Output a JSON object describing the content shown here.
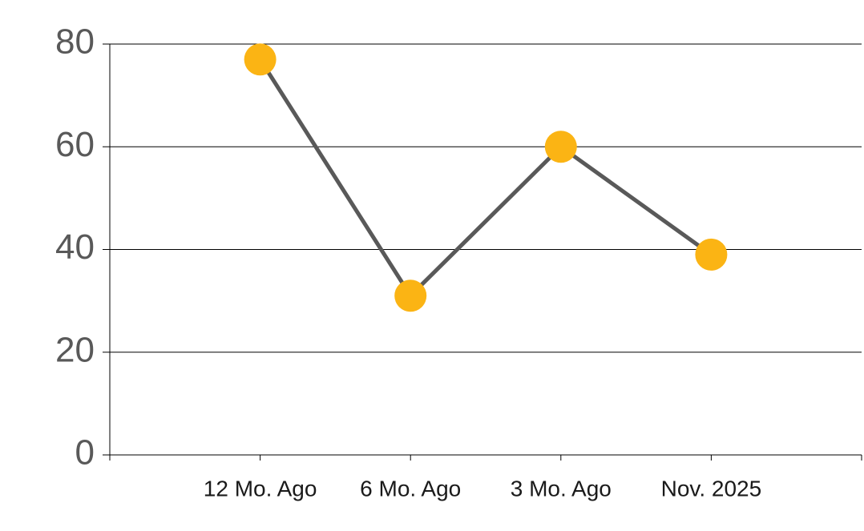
{
  "chart_data": {
    "type": "line",
    "categories": [
      "12 Mo. Ago",
      "6 Mo. Ago",
      "3 Mo. Ago",
      "Nov. 2025"
    ],
    "series": [
      {
        "values": [
          77,
          31,
          60,
          39
        ],
        "color": "#595959",
        "marker_color": "#fbb414"
      }
    ],
    "ylim": [
      0,
      80
    ],
    "yticks": [
      0,
      20,
      40,
      60,
      80
    ],
    "grid": true
  }
}
